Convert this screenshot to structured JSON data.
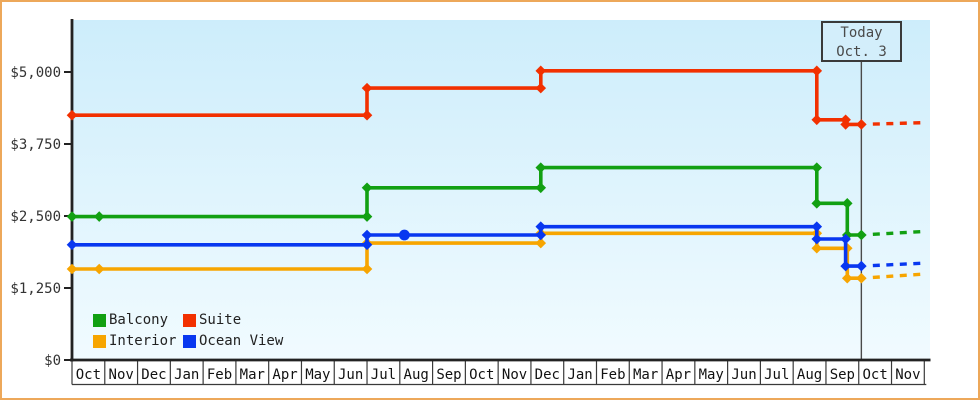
{
  "window": {
    "border_color": "#eda85a",
    "background_color": "#ffffff",
    "plot_gradient_top": "#cdedfb",
    "plot_gradient_bottom": "#f1fbff",
    "axis_color": "#222222",
    "grid_strip_color": "#3a3a3a",
    "text_color": "#333333"
  },
  "today": {
    "line1": "Today",
    "line2": "Oct. 3",
    "month_index": 24.08
  },
  "legend": {
    "items": [
      {
        "label": "Balcony",
        "color": "#12a012"
      },
      {
        "label": "Suite",
        "color": "#f23000"
      },
      {
        "label": "Interior",
        "color": "#f7a500"
      },
      {
        "label": "Ocean View",
        "color": "#0837f0"
      }
    ]
  },
  "chart_data": {
    "type": "line",
    "subtype": "step-price-history",
    "title": "",
    "xlabel": "",
    "ylabel": "",
    "ylim": [
      0,
      5000
    ],
    "grid": false,
    "legend_position": "bottom-left",
    "x_months": [
      "Oct",
      "Nov",
      "Dec",
      "Jan",
      "Feb",
      "Mar",
      "Apr",
      "May",
      "Jun",
      "Jul",
      "Aug",
      "Sep",
      "Oct",
      "Nov",
      "Dec",
      "Jan",
      "Feb",
      "Mar",
      "Apr",
      "May",
      "Jun",
      "Jul",
      "Aug",
      "Sep",
      "Oct",
      "Nov"
    ],
    "y_ticks": [
      {
        "value": 0,
        "label": "$0"
      },
      {
        "value": 1250,
        "label": "$1,250"
      },
      {
        "value": 2500,
        "label": "$2,500"
      },
      {
        "value": 3750,
        "label": "$3,750"
      },
      {
        "value": 5000,
        "label": "$5,000"
      }
    ],
    "series": [
      {
        "name": "Balcony",
        "color": "#12a012",
        "points": [
          {
            "m": 0,
            "v": 2490
          },
          {
            "m": 0.83,
            "v": 2490
          },
          {
            "m": 9,
            "v": 2990
          },
          {
            "m": 14.3,
            "v": 3340
          },
          {
            "m": 22.72,
            "v": 2720
          },
          {
            "m": 23.65,
            "v": 2170
          },
          {
            "m": 24.08,
            "v": 2170
          }
        ],
        "projection": {
          "m": 25.95,
          "v": 2230
        }
      },
      {
        "name": "Suite",
        "color": "#f23000",
        "points": [
          {
            "m": 0,
            "v": 4250
          },
          {
            "m": 9,
            "v": 4720
          },
          {
            "m": 14.3,
            "v": 5020
          },
          {
            "m": 22.72,
            "v": 4170
          },
          {
            "m": 23.6,
            "v": 4090
          },
          {
            "m": 24.08,
            "v": 4090
          }
        ],
        "projection": {
          "m": 25.95,
          "v": 4120
        }
      },
      {
        "name": "Interior",
        "color": "#f7a500",
        "points": [
          {
            "m": 0,
            "v": 1580
          },
          {
            "m": 0.83,
            "v": 1580
          },
          {
            "m": 9,
            "v": 2030
          },
          {
            "m": 14.3,
            "v": 2200
          },
          {
            "m": 22.72,
            "v": 1940
          },
          {
            "m": 23.65,
            "v": 1420
          },
          {
            "m": 24.08,
            "v": 1420
          }
        ],
        "projection": {
          "m": 25.95,
          "v": 1490
        }
      },
      {
        "name": "Ocean View",
        "color": "#0837f0",
        "points": [
          {
            "m": 0,
            "v": 2000
          },
          {
            "m": 9,
            "v": 2170
          },
          {
            "m": 10.14,
            "v": 2170,
            "shape": "circle"
          },
          {
            "m": 14.3,
            "v": 2315
          },
          {
            "m": 22.72,
            "v": 2100
          },
          {
            "m": 23.6,
            "v": 1630
          },
          {
            "m": 24.08,
            "v": 1630
          }
        ],
        "projection": {
          "m": 25.95,
          "v": 1680
        }
      }
    ]
  }
}
